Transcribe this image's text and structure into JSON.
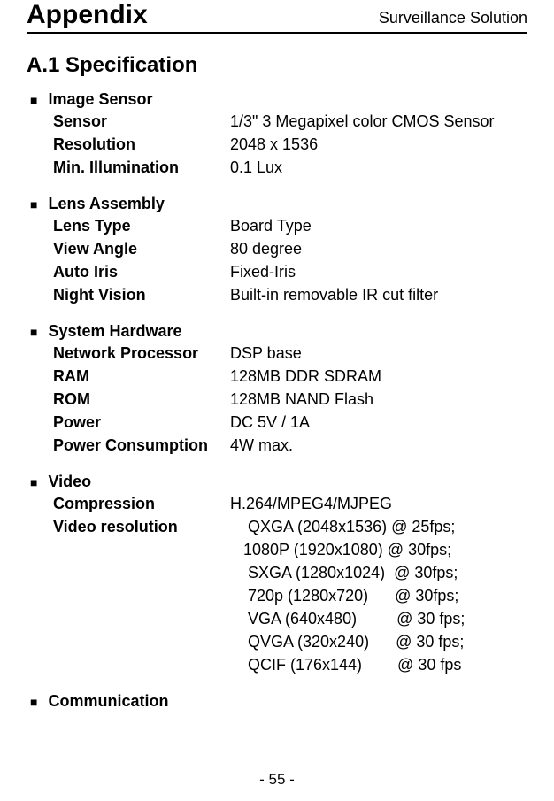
{
  "header": {
    "title": "Appendix",
    "subtitle": "Surveillance Solution"
  },
  "section": "A.1 Specification",
  "groups": {
    "image_sensor": {
      "title": "Image Sensor",
      "rows": {
        "sensor": {
          "label": "Sensor",
          "value": "1/3\" 3 Megapixel color CMOS Sensor"
        },
        "resolution": {
          "label": "Resolution",
          "value": "2048 x 1536"
        },
        "min_illum": {
          "label": "Min. Illumination",
          "value": "0.1 Lux"
        }
      }
    },
    "lens": {
      "title": "Lens Assembly",
      "rows": {
        "type": {
          "label": "Lens Type",
          "value": "Board Type"
        },
        "angle": {
          "label": "View Angle",
          "value": "80 degree"
        },
        "iris": {
          "label": "Auto Iris",
          "value": "Fixed-Iris"
        },
        "night": {
          "label": "Night Vision",
          "value": "Built-in removable IR cut filter"
        }
      }
    },
    "hardware": {
      "title": "System Hardware",
      "rows": {
        "proc": {
          "label": "Network Processor",
          "value": "DSP base"
        },
        "ram": {
          "label": "RAM",
          "value": "128MB DDR SDRAM"
        },
        "rom": {
          "label": "ROM",
          "value": "128MB NAND Flash"
        },
        "power": {
          "label": "Power",
          "value": "DC 5V / 1A"
        },
        "pc": {
          "label": "Power Consumption",
          "value": "4W max."
        }
      }
    },
    "video": {
      "title": "Video",
      "compression": {
        "label": "Compression",
        "value": "H.264/MPEG4/MJPEG"
      },
      "res_label": "Video resolution",
      "res_lines": [
        "    QXGA (2048x1536) @ 25fps;",
        "   1080P (1920x1080) @ 30fps;",
        "    SXGA (1280x1024)  @ 30fps;",
        "    720p (1280x720)      @ 30fps;",
        "    VGA (640x480)         @ 30 fps;",
        "    QVGA (320x240)      @ 30 fps;",
        "    QCIF (176x144)        @ 30 fps"
      ]
    },
    "comm": {
      "title": "Communication"
    }
  },
  "footer": "- 55 -"
}
